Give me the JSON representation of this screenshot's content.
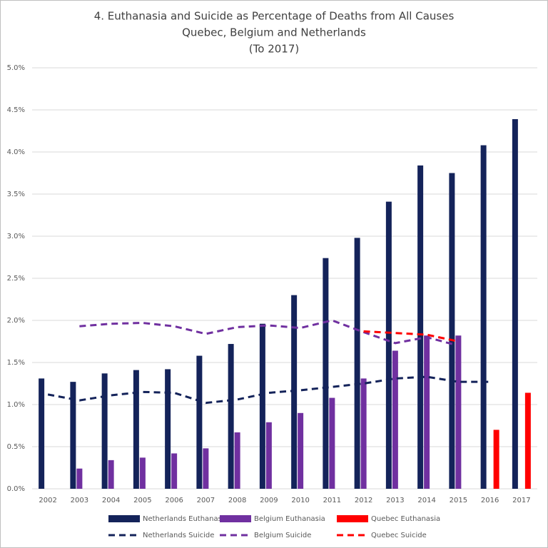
{
  "chart_data": {
    "type": "bar",
    "title": [
      "4. Euthanasia and Suicide as Percentage of Deaths from All Causes",
      "Quebec, Belgium and Netherlands",
      "(To 2017)"
    ],
    "categories": [
      "2002",
      "2003",
      "2004",
      "2005",
      "2006",
      "2007",
      "2008",
      "2009",
      "2010",
      "2011",
      "2012",
      "2013",
      "2014",
      "2015",
      "2016",
      "2017"
    ],
    "series": [
      {
        "name": "Netherlands Euthanasia",
        "type": "bar",
        "color": "#14235a",
        "values": [
          1.31,
          1.27,
          1.37,
          1.41,
          1.42,
          1.58,
          1.72,
          1.96,
          2.3,
          2.74,
          2.98,
          3.41,
          3.84,
          3.75,
          4.08,
          4.39
        ]
      },
      {
        "name": "Belgium Euthanasia",
        "type": "bar",
        "color": "#7030a0",
        "values": [
          null,
          0.24,
          0.34,
          0.37,
          0.42,
          0.48,
          0.67,
          0.79,
          0.9,
          1.08,
          1.31,
          1.64,
          1.82,
          1.82,
          null,
          null
        ]
      },
      {
        "name": "Quebec Euthanasia",
        "type": "bar",
        "color": "#ff0000",
        "values": [
          null,
          null,
          null,
          null,
          null,
          null,
          null,
          null,
          null,
          null,
          null,
          null,
          null,
          null,
          0.7,
          1.14
        ]
      },
      {
        "name": "Netherlands Suicide",
        "type": "line",
        "linestyle": "dashed",
        "color": "#14235a",
        "values": [
          1.12,
          1.05,
          1.11,
          1.15,
          1.14,
          1.02,
          1.06,
          1.14,
          1.17,
          1.21,
          1.25,
          1.31,
          1.33,
          1.27,
          1.27,
          null
        ]
      },
      {
        "name": "Belgium Suicide",
        "type": "line",
        "linestyle": "dashed",
        "color": "#7030a0",
        "values": [
          null,
          1.93,
          1.96,
          1.97,
          1.93,
          1.84,
          1.92,
          1.94,
          1.91,
          2.0,
          1.86,
          1.73,
          1.8,
          1.7,
          null,
          null
        ]
      },
      {
        "name": "Quebec Suicide",
        "type": "line",
        "linestyle": "dashed",
        "color": "#ff0000",
        "values": [
          null,
          null,
          null,
          null,
          null,
          null,
          null,
          null,
          null,
          null,
          1.87,
          1.85,
          1.83,
          1.75,
          null,
          null
        ]
      }
    ],
    "ylim": [
      0,
      5
    ],
    "yticks": [
      {
        "value": 0,
        "label": "0.0%"
      },
      {
        "value": 0.5,
        "label": "0.5%"
      },
      {
        "value": 1,
        "label": "1.0%"
      },
      {
        "value": 1.5,
        "label": "1.5%"
      },
      {
        "value": 2,
        "label": "2.0%"
      },
      {
        "value": 2.5,
        "label": "2.5%"
      },
      {
        "value": 3,
        "label": "3.0%"
      },
      {
        "value": 3.5,
        "label": "3.5%"
      },
      {
        "value": 4,
        "label": "4.0%"
      },
      {
        "value": 4.5,
        "label": "4.5%"
      },
      {
        "value": 5,
        "label": "5.0%"
      }
    ],
    "grid": true,
    "legend": "bottom"
  }
}
